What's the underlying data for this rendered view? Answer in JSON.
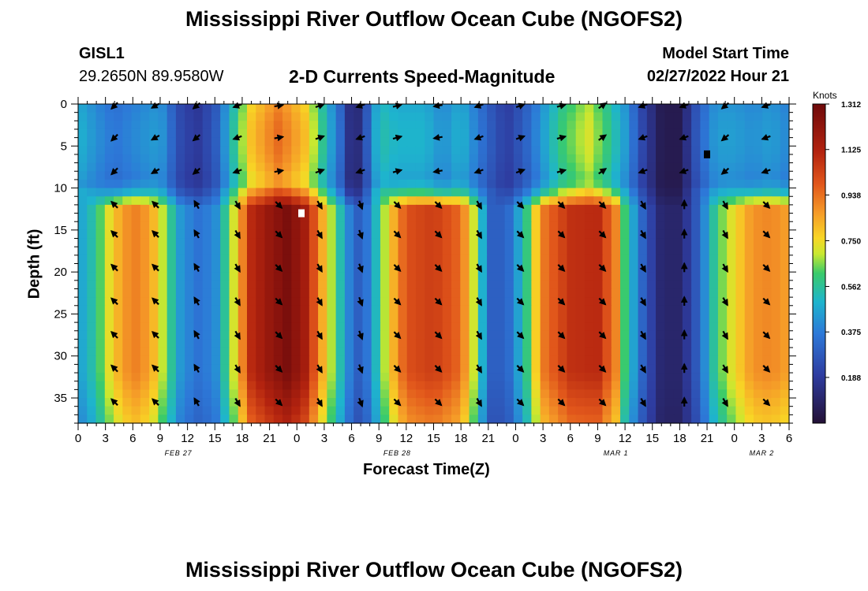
{
  "header": {
    "title": "Mississippi River Outflow Ocean Cube (NGOFS2)",
    "station_id": "GISL1",
    "coordinates": "29.2650N  89.9580W",
    "subtitle": "2-D Currents Speed-Magnitude",
    "model_start_label": "Model Start Time",
    "model_start_value": "02/27/2022 Hour 21"
  },
  "footer": {
    "title": "Mississippi River Outflow Ocean Cube (NGOFS2)"
  },
  "chart_data": {
    "type": "heatmap",
    "title": "2-D Currents Speed-Magnitude",
    "xlabel": "Forecast Time(Z)",
    "ylabel": "Depth (ft)",
    "x_range_hours": [
      0,
      78
    ],
    "x_start_hour_of_day": 0,
    "x_tick_step_hours": 3,
    "x_tick_labels": [
      "0",
      "3",
      "6",
      "9",
      "12",
      "15",
      "18",
      "21",
      "0",
      "3",
      "6",
      "9",
      "12",
      "15",
      "18",
      "21",
      "0",
      "3",
      "6",
      "9",
      "12",
      "15",
      "18",
      "21",
      "0",
      "3",
      "6"
    ],
    "date_labels": [
      {
        "label": "FEB 27",
        "hour": 11
      },
      {
        "label": "FEB 28",
        "hour": 35
      },
      {
        "label": "MAR 1",
        "hour": 59
      },
      {
        "label": "MAR 2",
        "hour": 75
      }
    ],
    "ylim": [
      0,
      38
    ],
    "y_ticks": [
      0,
      5,
      10,
      15,
      20,
      25,
      30,
      35
    ],
    "colorbar": {
      "unit": "Knots",
      "min": 0,
      "max": 1.312,
      "ticks": [
        "1.312",
        "1.125",
        "0.938",
        "0.750",
        "0.562",
        "0.375",
        "0.188"
      ]
    },
    "surface_layer_max_depth_ft": 10,
    "surface_layer_speed_profile": [
      {
        "hour": 0,
        "value": 0.5
      },
      {
        "hour": 2,
        "value": 0.42
      },
      {
        "hour": 4,
        "value": 0.36
      },
      {
        "hour": 7,
        "value": 0.42
      },
      {
        "hour": 9,
        "value": 0.45
      },
      {
        "hour": 11,
        "value": 0.25
      },
      {
        "hour": 13,
        "value": 0.18
      },
      {
        "hour": 15,
        "value": 0.28
      },
      {
        "hour": 17,
        "value": 0.55
      },
      {
        "hour": 19,
        "value": 0.8
      },
      {
        "hour": 22,
        "value": 0.95
      },
      {
        "hour": 25,
        "value": 0.8
      },
      {
        "hour": 27,
        "value": 0.55
      },
      {
        "hour": 29,
        "value": 0.3
      },
      {
        "hour": 30,
        "value": 0.1
      },
      {
        "hour": 31,
        "value": 0.15
      },
      {
        "hour": 33,
        "value": 0.55
      },
      {
        "hour": 35,
        "value": 0.5
      },
      {
        "hour": 38,
        "value": 0.5
      },
      {
        "hour": 40,
        "value": 0.42
      },
      {
        "hour": 42,
        "value": 0.5
      },
      {
        "hour": 45,
        "value": 0.3
      },
      {
        "hour": 47,
        "value": 0.2
      },
      {
        "hour": 49,
        "value": 0.3
      },
      {
        "hour": 51,
        "value": 0.45
      },
      {
        "hour": 53,
        "value": 0.6
      },
      {
        "hour": 56,
        "value": 0.72
      },
      {
        "hour": 58,
        "value": 0.6
      },
      {
        "hour": 60,
        "value": 0.45
      },
      {
        "hour": 62,
        "value": 0.22
      },
      {
        "hour": 64,
        "value": 0.05
      },
      {
        "hour": 66,
        "value": 0.05
      },
      {
        "hour": 68,
        "value": 0.3
      },
      {
        "hour": 70,
        "value": 0.45
      },
      {
        "hour": 72,
        "value": 0.45
      },
      {
        "hour": 74,
        "value": 0.42
      },
      {
        "hour": 76,
        "value": 0.45
      },
      {
        "hour": 78,
        "value": 0.4
      }
    ],
    "deep_layer_speed_profile": [
      {
        "hour": 0,
        "value": 0.45
      },
      {
        "hour": 1,
        "value": 0.5
      },
      {
        "hour": 2,
        "value": 0.58
      },
      {
        "hour": 4,
        "value": 0.8
      },
      {
        "hour": 6,
        "value": 0.92
      },
      {
        "hour": 8,
        "value": 0.85
      },
      {
        "hour": 10,
        "value": 0.6
      },
      {
        "hour": 11,
        "value": 0.45
      },
      {
        "hour": 13,
        "value": 0.35
      },
      {
        "hour": 15,
        "value": 0.4
      },
      {
        "hour": 17,
        "value": 0.7
      },
      {
        "hour": 19,
        "value": 1.1
      },
      {
        "hour": 21,
        "value": 1.2
      },
      {
        "hour": 23,
        "value": 1.28
      },
      {
        "hour": 25,
        "value": 1.15
      },
      {
        "hour": 27,
        "value": 0.8
      },
      {
        "hour": 29,
        "value": 0.5
      },
      {
        "hour": 30,
        "value": 0.35
      },
      {
        "hour": 31,
        "value": 0.28
      },
      {
        "hour": 32,
        "value": 0.4
      },
      {
        "hour": 34,
        "value": 0.75
      },
      {
        "hour": 36,
        "value": 1.0
      },
      {
        "hour": 39,
        "value": 1.05
      },
      {
        "hour": 42,
        "value": 0.95
      },
      {
        "hour": 44,
        "value": 0.6
      },
      {
        "hour": 45,
        "value": 0.3
      },
      {
        "hour": 47,
        "value": 0.3
      },
      {
        "hour": 49,
        "value": 0.55
      },
      {
        "hour": 51,
        "value": 0.92
      },
      {
        "hour": 54,
        "value": 1.08
      },
      {
        "hour": 57,
        "value": 1.1
      },
      {
        "hour": 59,
        "value": 0.9
      },
      {
        "hour": 60,
        "value": 0.6
      },
      {
        "hour": 62,
        "value": 0.3
      },
      {
        "hour": 64,
        "value": 0.1
      },
      {
        "hour": 66,
        "value": 0.1
      },
      {
        "hour": 68,
        "value": 0.3
      },
      {
        "hour": 70,
        "value": 0.6
      },
      {
        "hour": 72,
        "value": 0.75
      },
      {
        "hour": 74,
        "value": 0.88
      },
      {
        "hour": 76,
        "value": 0.9
      },
      {
        "hour": 78,
        "value": 0.85
      }
    ],
    "vector_grid": {
      "hours": [
        4,
        8.5,
        13,
        17.5,
        22,
        26.5,
        31,
        35,
        39.5,
        44,
        48.5,
        53,
        57.5,
        62,
        66.5,
        71,
        75.5
      ],
      "depths_ft": [
        0,
        4,
        8,
        12,
        15.5,
        19.5,
        23.5,
        27.5,
        31.5,
        35.5
      ],
      "surface_direction_deg": [
        225,
        210,
        220,
        200,
        10,
        20,
        200,
        15,
        190,
        200,
        20,
        15,
        35,
        200,
        200,
        220,
        200
      ],
      "deep_direction_deg": [
        135,
        135,
        120,
        300,
        315,
        300,
        290,
        315,
        315,
        300,
        315,
        315,
        315,
        300,
        90,
        300,
        315
      ]
    },
    "markers": [
      {
        "hour": 24.5,
        "depth_ft": 13,
        "color": "#ffffff"
      },
      {
        "hour": 69,
        "depth_ft": 6,
        "color": "#000000"
      }
    ]
  }
}
